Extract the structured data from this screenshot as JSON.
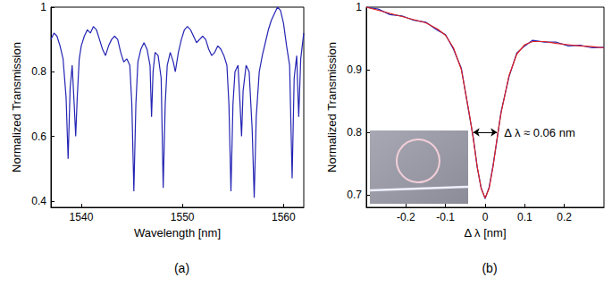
{
  "chart_data": [
    {
      "type": "line",
      "title": "(a)",
      "x_label": "Wavelength [nm]",
      "y_label": "Normalized Transmission",
      "xlim": [
        1537,
        1562
      ],
      "xticks": [
        1540,
        1550,
        1560
      ],
      "ylim": [
        0.38,
        1
      ],
      "yticks": [
        0.4,
        0.6,
        0.8,
        1
      ],
      "grid": false,
      "x": [
        1537.0,
        1537.3,
        1537.6,
        1537.9,
        1538.2,
        1538.5,
        1538.7,
        1538.9,
        1539.1,
        1539.3,
        1539.45,
        1539.6,
        1539.8,
        1540.0,
        1540.3,
        1540.6,
        1540.9,
        1541.2,
        1541.5,
        1541.8,
        1542.1,
        1542.4,
        1542.7,
        1543.0,
        1543.3,
        1543.6,
        1543.9,
        1544.2,
        1544.5,
        1544.8,
        1545.0,
        1545.2,
        1545.4,
        1545.6,
        1545.9,
        1546.2,
        1546.5,
        1546.8,
        1546.95,
        1547.1,
        1547.3,
        1547.6,
        1547.9,
        1548.1,
        1548.3,
        1548.5,
        1548.8,
        1549.1,
        1549.3,
        1549.6,
        1549.9,
        1550.2,
        1550.5,
        1550.8,
        1551.1,
        1551.4,
        1551.7,
        1552.0,
        1552.3,
        1552.6,
        1552.9,
        1553.2,
        1553.5,
        1553.8,
        1554.1,
        1554.4,
        1554.6,
        1554.8,
        1555.0,
        1555.2,
        1555.5,
        1555.7,
        1555.85,
        1556.0,
        1556.3,
        1556.6,
        1556.9,
        1557.1,
        1557.3,
        1557.6,
        1557.9,
        1558.2,
        1558.5,
        1558.8,
        1559.1,
        1559.4,
        1559.7,
        1560.0,
        1560.3,
        1560.6,
        1560.85,
        1561.05,
        1561.3,
        1561.5,
        1561.7,
        1562.0
      ],
      "series": [
        {
          "color": "#2424b4",
          "values": [
            0.9,
            0.92,
            0.91,
            0.88,
            0.84,
            0.72,
            0.53,
            0.75,
            0.82,
            0.7,
            0.6,
            0.72,
            0.84,
            0.88,
            0.91,
            0.93,
            0.92,
            0.94,
            0.93,
            0.9,
            0.87,
            0.85,
            0.88,
            0.9,
            0.91,
            0.9,
            0.86,
            0.83,
            0.84,
            0.82,
            0.7,
            0.43,
            0.7,
            0.83,
            0.87,
            0.89,
            0.87,
            0.82,
            0.66,
            0.8,
            0.86,
            0.85,
            0.78,
            0.44,
            0.7,
            0.82,
            0.86,
            0.83,
            0.8,
            0.86,
            0.9,
            0.93,
            0.94,
            0.93,
            0.91,
            0.89,
            0.9,
            0.91,
            0.9,
            0.87,
            0.85,
            0.86,
            0.88,
            0.87,
            0.85,
            0.82,
            0.7,
            0.43,
            0.7,
            0.8,
            0.82,
            0.7,
            0.6,
            0.74,
            0.82,
            0.8,
            0.62,
            0.41,
            0.66,
            0.8,
            0.85,
            0.89,
            0.93,
            0.96,
            0.98,
            1.0,
            0.99,
            0.95,
            0.88,
            0.82,
            0.47,
            0.78,
            0.85,
            0.66,
            0.84,
            0.92
          ]
        }
      ]
    },
    {
      "type": "line",
      "title": "(b)",
      "x_label": "Δ λ [nm]",
      "y_label": "Normalized Transmission",
      "xlim": [
        -0.3,
        0.3
      ],
      "xticks": [
        -0.2,
        -0.1,
        0,
        0.1,
        0.2
      ],
      "ylim": [
        0.68,
        1
      ],
      "yticks": [
        0.7,
        0.8,
        0.9,
        1
      ],
      "grid": false,
      "x": [
        -0.3,
        -0.27,
        -0.24,
        -0.21,
        -0.18,
        -0.15,
        -0.12,
        -0.1,
        -0.08,
        -0.06,
        -0.04,
        -0.03,
        -0.02,
        -0.01,
        0,
        0.01,
        0.02,
        0.03,
        0.04,
        0.06,
        0.08,
        0.1,
        0.12,
        0.15,
        0.18,
        0.21,
        0.24,
        0.27,
        0.3
      ],
      "series": [
        {
          "color": "#2424b4",
          "values": [
            1.0,
            0.997,
            0.988,
            0.986,
            0.979,
            0.976,
            0.963,
            0.956,
            0.933,
            0.902,
            0.828,
            0.792,
            0.744,
            0.711,
            0.694,
            0.712,
            0.747,
            0.788,
            0.832,
            0.888,
            0.927,
            0.938,
            0.947,
            0.944,
            0.944,
            0.938,
            0.939,
            0.935,
            0.936
          ]
        },
        {
          "color": "#e02020",
          "values": [
            1.0,
            0.995,
            0.99,
            0.985,
            0.98,
            0.975,
            0.965,
            0.955,
            0.935,
            0.9,
            0.83,
            0.79,
            0.745,
            0.71,
            0.695,
            0.71,
            0.745,
            0.79,
            0.83,
            0.89,
            0.925,
            0.94,
            0.945,
            0.945,
            0.942,
            0.94,
            0.938,
            0.937,
            0.935
          ]
        }
      ],
      "annotations": [
        {
          "text": "Δ λ ≈ 0.06 nm",
          "x": [
            -0.03,
            0.03
          ],
          "y": 0.8
        }
      ]
    }
  ]
}
